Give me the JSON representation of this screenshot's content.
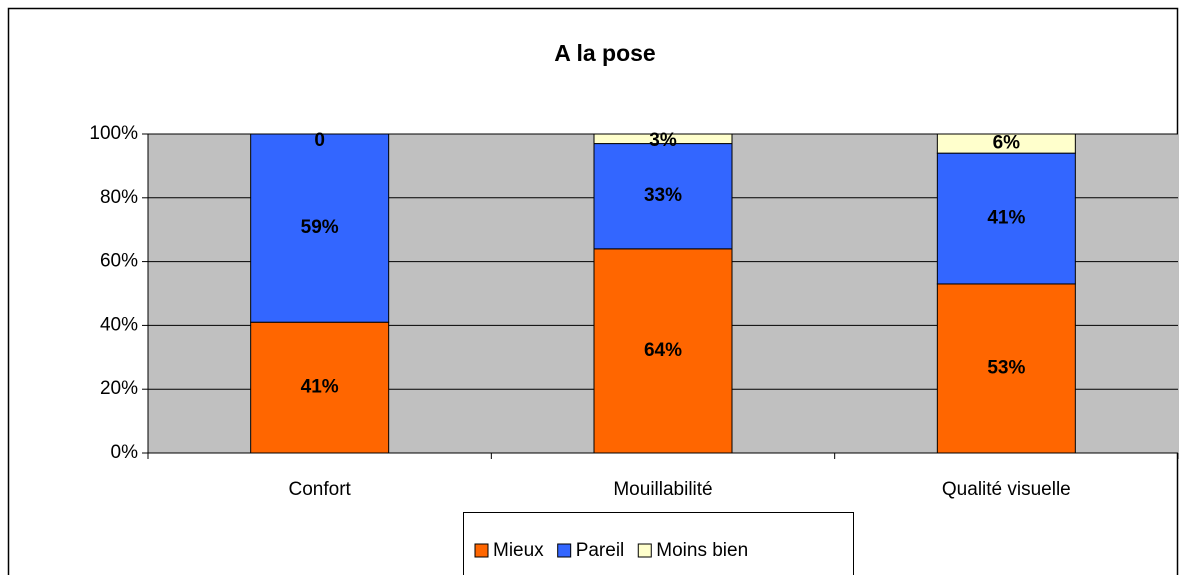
{
  "chart_data": {
    "type": "bar",
    "stacked": true,
    "title": "A la pose",
    "categories": [
      "Confort",
      "Mouillabilité",
      "Qualité visuelle"
    ],
    "series": [
      {
        "name": "Mieux",
        "color": "#ff6600",
        "values": [
          41,
          64,
          53
        ],
        "value_labels": [
          "41%",
          "64%",
          "53%"
        ]
      },
      {
        "name": "Pareil",
        "color": "#3366ff",
        "values": [
          59,
          33,
          41
        ],
        "value_labels": [
          "59%",
          "33%",
          "41%"
        ]
      },
      {
        "name": "Moins bien",
        "color": "#ffffcc",
        "values": [
          0,
          3,
          6
        ],
        "value_labels": [
          "0",
          "3%",
          "6%"
        ]
      }
    ],
    "ylim": [
      0,
      100
    ],
    "yticks": [
      {
        "value": 0,
        "label": "0%"
      },
      {
        "value": 20,
        "label": "20%"
      },
      {
        "value": 40,
        "label": "40%"
      },
      {
        "value": 60,
        "label": "60%"
      },
      {
        "value": 80,
        "label": "80%"
      },
      {
        "value": 100,
        "label": "100%"
      }
    ],
    "grid": true,
    "legend": "bottom",
    "plot_background": "#c0c0c0"
  }
}
